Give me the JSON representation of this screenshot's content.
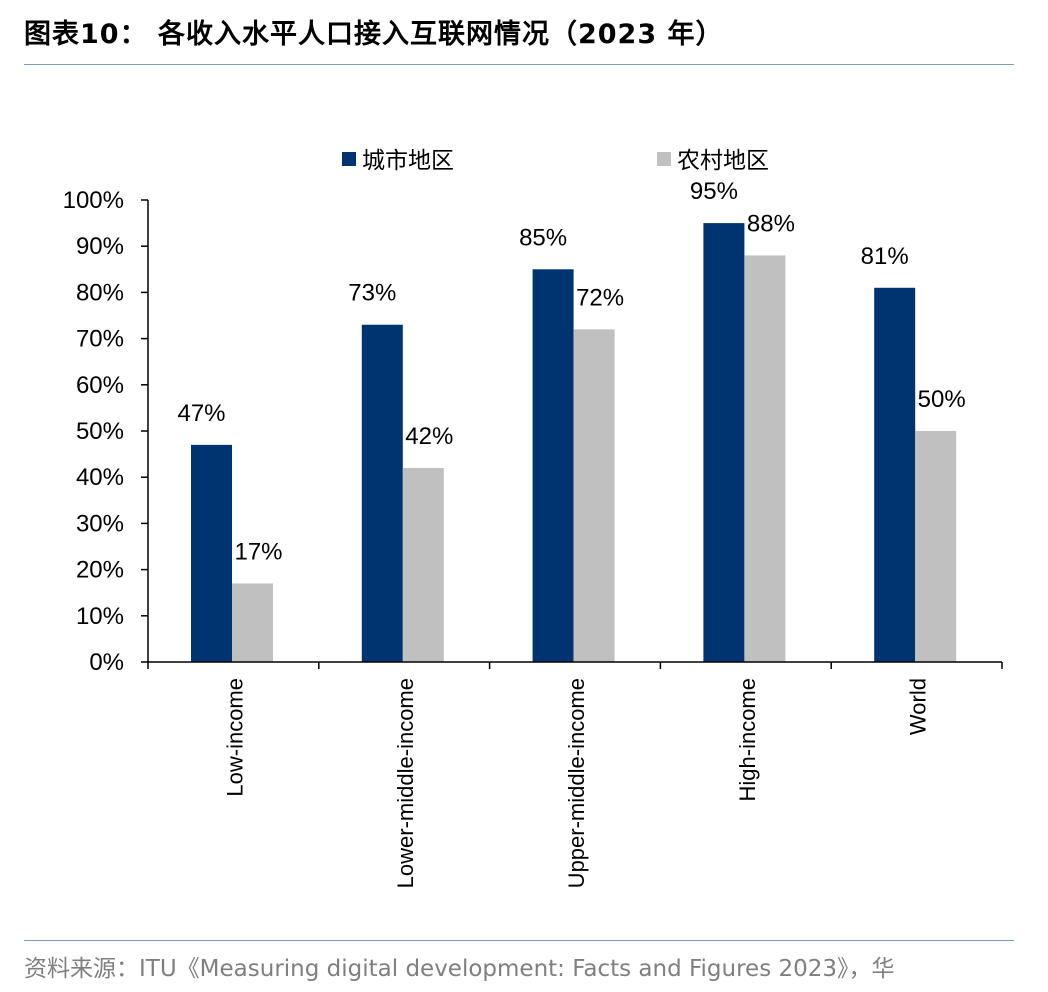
{
  "header": {
    "title": "图表10： 各收入水平人口接入互联网情况（2023 年）"
  },
  "footer": {
    "source": "资料来源：ITU《Measuring digital development: Facts and Figures 2023》，华"
  },
  "colors": {
    "series_urban": "#003471",
    "series_rural": "#c0c0c0",
    "rule": "#7f9cbd"
  },
  "chart_data": {
    "type": "bar",
    "title": "",
    "xlabel": "",
    "ylabel": "",
    "categories": [
      "Low-income",
      "Lower-middle-income",
      "Upper-middle-income",
      "High-income",
      "World"
    ],
    "series": [
      {
        "name": "城市地区",
        "values": [
          47,
          73,
          85,
          95,
          81
        ],
        "labels": [
          "47%",
          "73%",
          "85%",
          "95%",
          "81%"
        ]
      },
      {
        "name": "农村地区",
        "values": [
          17,
          42,
          72,
          88,
          50
        ],
        "labels": [
          "17%",
          "42%",
          "72%",
          "88%",
          "50%"
        ]
      }
    ],
    "ylim": [
      0,
      100
    ],
    "yticks": [
      "0%",
      "10%",
      "20%",
      "30%",
      "40%",
      "50%",
      "60%",
      "70%",
      "80%",
      "90%",
      "100%"
    ],
    "legend": "top",
    "grid": false
  }
}
